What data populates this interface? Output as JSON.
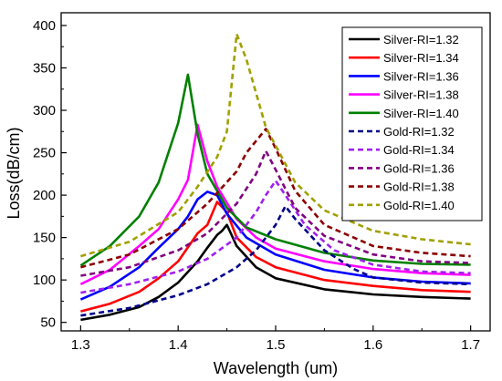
{
  "chart_data": {
    "type": "line",
    "xlabel": "Wavelength (um)",
    "ylabel": "Loss(dB/cm)",
    "xlim": [
      1.28,
      1.72
    ],
    "ylim": [
      40,
      415
    ],
    "xticks": [
      "1.3",
      "1.4",
      "1.5",
      "1.6",
      "1.7"
    ],
    "xtick_values": [
      1.3,
      1.4,
      1.5,
      1.6,
      1.7
    ],
    "yticks": [
      "50",
      "100",
      "150",
      "200",
      "250",
      "300",
      "350",
      "400"
    ],
    "ytick_values": [
      50,
      100,
      150,
      200,
      250,
      300,
      350,
      400
    ],
    "grid": false,
    "legend_position": "top-right",
    "series": [
      {
        "name": "Silver-RI=1.32",
        "color": "#000000",
        "dash": "solid",
        "points": [
          [
            1.3,
            53
          ],
          [
            1.33,
            59
          ],
          [
            1.36,
            68
          ],
          [
            1.38,
            80
          ],
          [
            1.4,
            97
          ],
          [
            1.42,
            122
          ],
          [
            1.43,
            138
          ],
          [
            1.44,
            153
          ],
          [
            1.445,
            158
          ],
          [
            1.45,
            165
          ],
          [
            1.46,
            140
          ],
          [
            1.48,
            115
          ],
          [
            1.5,
            102
          ],
          [
            1.55,
            89
          ],
          [
            1.6,
            83
          ],
          [
            1.65,
            80
          ],
          [
            1.7,
            78
          ]
        ]
      },
      {
        "name": "Silver-RI=1.34",
        "color": "#ff0000",
        "dash": "solid",
        "points": [
          [
            1.3,
            63
          ],
          [
            1.33,
            72
          ],
          [
            1.36,
            86
          ],
          [
            1.38,
            102
          ],
          [
            1.4,
            122
          ],
          [
            1.42,
            155
          ],
          [
            1.43,
            165
          ],
          [
            1.44,
            192
          ],
          [
            1.45,
            180
          ],
          [
            1.46,
            150
          ],
          [
            1.48,
            127
          ],
          [
            1.5,
            115
          ],
          [
            1.55,
            100
          ],
          [
            1.6,
            93
          ],
          [
            1.65,
            88
          ],
          [
            1.7,
            86
          ]
        ]
      },
      {
        "name": "Silver-RI=1.36",
        "color": "#0000ff",
        "dash": "solid",
        "points": [
          [
            1.3,
            77
          ],
          [
            1.33,
            92
          ],
          [
            1.36,
            115
          ],
          [
            1.38,
            138
          ],
          [
            1.4,
            160
          ],
          [
            1.41,
            175
          ],
          [
            1.42,
            195
          ],
          [
            1.43,
            204
          ],
          [
            1.44,
            200
          ],
          [
            1.45,
            178
          ],
          [
            1.47,
            150
          ],
          [
            1.5,
            130
          ],
          [
            1.55,
            112
          ],
          [
            1.6,
            103
          ],
          [
            1.65,
            98
          ],
          [
            1.7,
            96
          ]
        ]
      },
      {
        "name": "Silver-RI=1.38",
        "color": "#ff00ff",
        "dash": "solid",
        "points": [
          [
            1.3,
            95
          ],
          [
            1.33,
            112
          ],
          [
            1.36,
            140
          ],
          [
            1.38,
            160
          ],
          [
            1.4,
            195
          ],
          [
            1.41,
            218
          ],
          [
            1.42,
            283
          ],
          [
            1.43,
            240
          ],
          [
            1.44,
            210
          ],
          [
            1.46,
            172
          ],
          [
            1.48,
            150
          ],
          [
            1.5,
            137
          ],
          [
            1.55,
            122
          ],
          [
            1.6,
            113
          ],
          [
            1.65,
            108
          ],
          [
            1.7,
            106
          ]
        ]
      },
      {
        "name": "Silver-RI=1.40",
        "color": "#008000",
        "dash": "solid",
        "points": [
          [
            1.3,
            117
          ],
          [
            1.33,
            140
          ],
          [
            1.36,
            175
          ],
          [
            1.38,
            215
          ],
          [
            1.4,
            285
          ],
          [
            1.41,
            342
          ],
          [
            1.42,
            272
          ],
          [
            1.43,
            225
          ],
          [
            1.45,
            185
          ],
          [
            1.47,
            162
          ],
          [
            1.5,
            148
          ],
          [
            1.55,
            132
          ],
          [
            1.6,
            123
          ],
          [
            1.65,
            119
          ],
          [
            1.7,
            118
          ]
        ]
      },
      {
        "name": "Gold-RI=1.32",
        "color": "#00008b",
        "dash": "dashed",
        "points": [
          [
            1.3,
            58
          ],
          [
            1.35,
            67
          ],
          [
            1.4,
            82
          ],
          [
            1.43,
            95
          ],
          [
            1.46,
            115
          ],
          [
            1.48,
            135
          ],
          [
            1.5,
            165
          ],
          [
            1.51,
            187
          ],
          [
            1.52,
            172
          ],
          [
            1.55,
            135
          ],
          [
            1.58,
            113
          ],
          [
            1.6,
            103
          ],
          [
            1.65,
            97
          ],
          [
            1.7,
            95
          ]
        ]
      },
      {
        "name": "Gold-RI=1.34",
        "color": "#a020f0",
        "dash": "dashed",
        "points": [
          [
            1.3,
            85
          ],
          [
            1.35,
            95
          ],
          [
            1.4,
            110
          ],
          [
            1.43,
            125
          ],
          [
            1.46,
            150
          ],
          [
            1.48,
            180
          ],
          [
            1.49,
            200
          ],
          [
            1.5,
            217
          ],
          [
            1.51,
            200
          ],
          [
            1.53,
            165
          ],
          [
            1.56,
            135
          ],
          [
            1.6,
            118
          ],
          [
            1.65,
            110
          ],
          [
            1.7,
            108
          ]
        ]
      },
      {
        "name": "Gold-RI=1.36",
        "color": "#800080",
        "dash": "dashed",
        "points": [
          [
            1.3,
            105
          ],
          [
            1.35,
            115
          ],
          [
            1.4,
            135
          ],
          [
            1.43,
            155
          ],
          [
            1.46,
            190
          ],
          [
            1.48,
            225
          ],
          [
            1.49,
            252
          ],
          [
            1.5,
            230
          ],
          [
            1.52,
            185
          ],
          [
            1.55,
            152
          ],
          [
            1.6,
            130
          ],
          [
            1.65,
            122
          ],
          [
            1.7,
            120
          ]
        ]
      },
      {
        "name": "Gold-RI=1.38",
        "color": "#8b0000",
        "dash": "dashed",
        "points": [
          [
            1.3,
            115
          ],
          [
            1.35,
            130
          ],
          [
            1.4,
            160
          ],
          [
            1.43,
            190
          ],
          [
            1.46,
            228
          ],
          [
            1.47,
            250
          ],
          [
            1.49,
            278
          ],
          [
            1.5,
            255
          ],
          [
            1.52,
            205
          ],
          [
            1.55,
            165
          ],
          [
            1.6,
            140
          ],
          [
            1.65,
            132
          ],
          [
            1.7,
            128
          ]
        ]
      },
      {
        "name": "Gold-RI=1.40",
        "color": "#a0a000",
        "dash": "dashed",
        "points": [
          [
            1.3,
            128
          ],
          [
            1.35,
            145
          ],
          [
            1.4,
            180
          ],
          [
            1.42,
            210
          ],
          [
            1.44,
            245
          ],
          [
            1.45,
            275
          ],
          [
            1.46,
            390
          ],
          [
            1.47,
            360
          ],
          [
            1.49,
            280
          ],
          [
            1.52,
            215
          ],
          [
            1.55,
            182
          ],
          [
            1.6,
            158
          ],
          [
            1.65,
            148
          ],
          [
            1.7,
            142
          ]
        ]
      }
    ]
  }
}
